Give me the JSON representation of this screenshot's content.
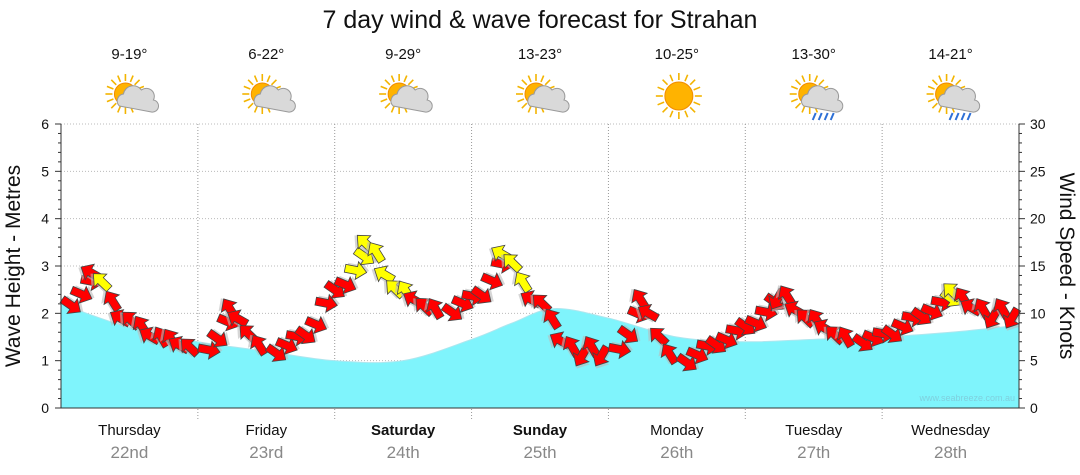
{
  "chart_data": {
    "type": "area",
    "title": "7 day wind & wave forecast for Strahan",
    "ylabel_left": "Wave Height - Metres",
    "ylabel_right": "Wind Speed - Knots",
    "ylim_left": [
      0,
      6
    ],
    "ylim_right": [
      0,
      30
    ],
    "yticks_left": [
      "0",
      "1",
      "2",
      "3",
      "4",
      "5",
      "6"
    ],
    "yticks_right": [
      "0",
      "5",
      "10",
      "15",
      "20",
      "25",
      "30"
    ],
    "watermark": "www.seabreeze.com.au",
    "days": [
      {
        "name": "Thursday",
        "date": "22nd",
        "temp": "9-19°",
        "icon": "partly-cloudy-icon",
        "bold": false
      },
      {
        "name": "Friday",
        "date": "23rd",
        "temp": "6-22°",
        "icon": "partly-cloudy-icon",
        "bold": false
      },
      {
        "name": "Saturday",
        "date": "24th",
        "temp": "9-29°",
        "icon": "partly-cloudy-icon",
        "bold": true
      },
      {
        "name": "Sunday",
        "date": "25th",
        "temp": "13-23°",
        "icon": "partly-cloudy-icon",
        "bold": true
      },
      {
        "name": "Monday",
        "date": "26th",
        "temp": "10-25°",
        "icon": "sunny-icon",
        "bold": false
      },
      {
        "name": "Tuesday",
        "date": "27th",
        "temp": "13-30°",
        "icon": "showers-icon",
        "bold": false
      },
      {
        "name": "Wednesday",
        "date": "28th",
        "temp": "14-21°",
        "icon": "showers-icon",
        "bold": false
      }
    ],
    "x_range_days": [
      0,
      7
    ],
    "wave_height": {
      "x": [
        0,
        0.5,
        1.0,
        1.5,
        2.0,
        2.5,
        3.0,
        3.3,
        3.6,
        4.0,
        4.5,
        5.0,
        5.5,
        6.0,
        6.5,
        7.0
      ],
      "values": [
        2.2,
        1.7,
        1.4,
        1.2,
        1.0,
        1.0,
        1.45,
        1.8,
        2.1,
        1.9,
        1.5,
        1.4,
        1.45,
        1.5,
        1.6,
        1.75
      ]
    },
    "wind_speed": {
      "x": [
        0,
        0.25,
        0.5,
        0.75,
        1.0,
        1.25,
        1.5,
        1.75,
        2.0,
        2.25,
        2.5,
        2.75,
        3.0,
        3.25,
        3.5,
        3.75,
        4.0,
        4.25,
        4.5,
        4.75,
        5.0,
        5.25,
        5.5,
        5.75,
        6.0,
        6.25,
        6.5,
        6.75,
        7.0
      ],
      "values": [
        11,
        14,
        9,
        7,
        6,
        10,
        6,
        8,
        13,
        17,
        12,
        10,
        12,
        16,
        11,
        6,
        6,
        11,
        5,
        7,
        9,
        12,
        9,
        7,
        8,
        10,
        12,
        10,
        10
      ],
      "strong_threshold_gust": true
    }
  }
}
